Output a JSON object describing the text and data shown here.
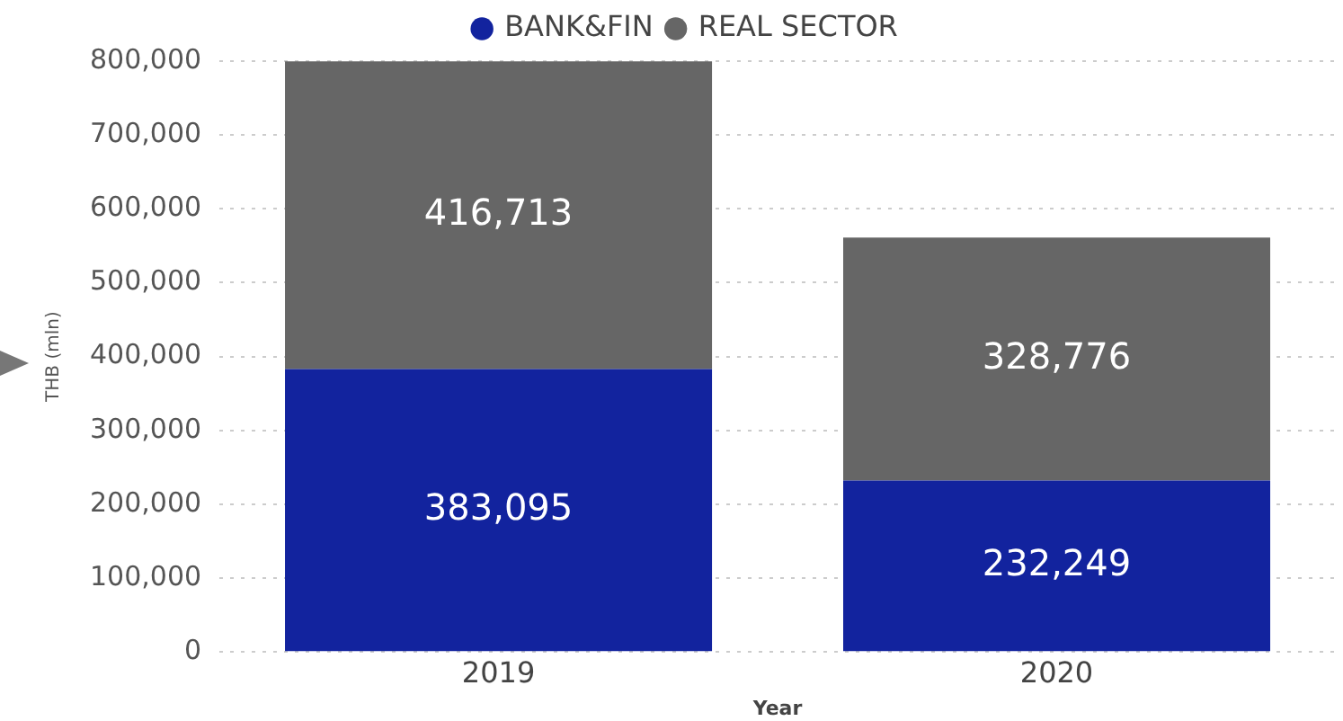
{
  "chart_data": {
    "type": "bar",
    "stacked": true,
    "categories": [
      "2019",
      "2020"
    ],
    "series": [
      {
        "name": "BANK&FIN",
        "color": "#12239e",
        "values": [
          383095,
          232249
        ],
        "value_labels": [
          "383,095",
          "232,249"
        ]
      },
      {
        "name": "REAL SECTOR",
        "color": "#666666",
        "values": [
          416713,
          328776
        ],
        "value_labels": [
          "416,713",
          "328,776"
        ]
      }
    ],
    "ylim": [
      0,
      800000
    ],
    "yticks": [
      {
        "value": 0,
        "label": "0"
      },
      {
        "value": 100000,
        "label": "100,000"
      },
      {
        "value": 200000,
        "label": "200,000"
      },
      {
        "value": 300000,
        "label": "300,000"
      },
      {
        "value": 400000,
        "label": "400,000"
      },
      {
        "value": 500000,
        "label": "500,000"
      },
      {
        "value": 600000,
        "label": "600,000"
      },
      {
        "value": 700000,
        "label": "700,000"
      },
      {
        "value": 800000,
        "label": "800,000"
      }
    ],
    "xlabel": "Year",
    "ylabel": "THB (mln)",
    "grid": "y",
    "legend": "top"
  }
}
